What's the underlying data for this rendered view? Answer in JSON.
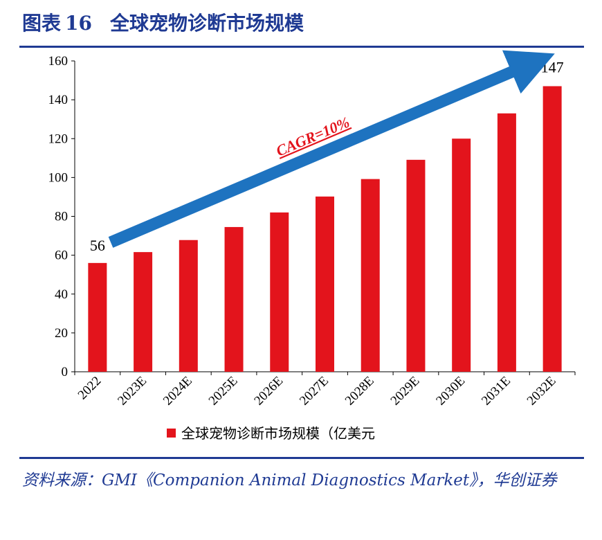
{
  "header": {
    "label": "图表",
    "number": "16",
    "title": "全球宠物诊断市场规模"
  },
  "chart_data": {
    "type": "bar",
    "title": "全球宠物诊断市场规模",
    "categories": [
      "2022",
      "2023E",
      "2024E",
      "2025E",
      "2026E",
      "2027E",
      "2028E",
      "2029E",
      "2030E",
      "2031E",
      "2032E"
    ],
    "series": [
      {
        "name": "全球宠物诊断市场规模（亿美元",
        "values": [
          56,
          61.6,
          67.8,
          74.5,
          82.0,
          90.2,
          99.2,
          109.1,
          120.0,
          133.0,
          147
        ],
        "color": "#e3141c"
      }
    ],
    "yticks": [
      "0",
      "20",
      "40",
      "60",
      "80",
      "100",
      "120",
      "140",
      "160"
    ],
    "ylim": [
      0,
      160
    ],
    "data_labels": [
      {
        "index": 0,
        "text": "56"
      },
      {
        "index": 10,
        "text": "147"
      }
    ],
    "annotation": {
      "text": "CAGR=10%",
      "arrow_color": "#1e73c0"
    },
    "legend_placement": "bottom"
  },
  "source": {
    "text": "资料来源：GMI《Companion Animal Diagnostics Market》，华创证券"
  }
}
